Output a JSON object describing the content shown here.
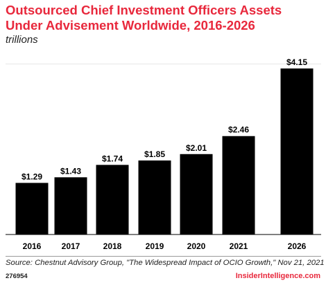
{
  "chart_data": {
    "type": "bar",
    "title": "Outsourced Chief Investment Officers Assets Under Advisement Worldwide, 2016-2026",
    "subtitle": "trillions",
    "categories": [
      "2016",
      "2017",
      "2018",
      "2019",
      "2020",
      "2021",
      "2026"
    ],
    "values": [
      1.29,
      1.43,
      1.74,
      1.85,
      2.01,
      2.46,
      4.15
    ],
    "data_labels": [
      "$1.29",
      "$1.43",
      "$1.74",
      "$1.85",
      "$2.01",
      "$2.46",
      "$4.15"
    ],
    "ylim": [
      0,
      4.15
    ],
    "grid": false,
    "legend": "none"
  },
  "footer": {
    "source": "Source: Chestnut Advisory Group, \"The Widespread Impact of OCIO Growth,\" Nov 21, 2021",
    "chart_id": "276954",
    "brand": "InsiderIntelligence.com"
  },
  "colors": {
    "title": "#e8283c",
    "bar": "#000000",
    "brand": "#e8283c"
  }
}
